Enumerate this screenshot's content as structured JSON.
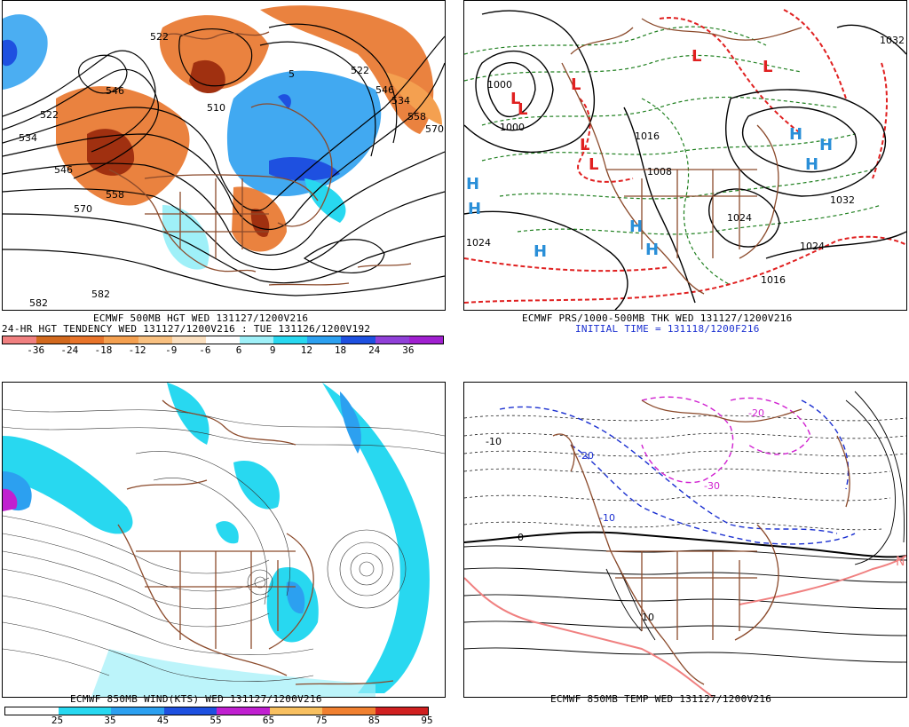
{
  "panels": {
    "tl": {
      "caption1": "ECMWF 500MB HGT WED 131127/1200V216",
      "caption2": "24-HR HGT TENDENCY WED 131127/1200V216 : TUE 131126/1200V192",
      "contour_labels": [
        "522",
        "522",
        "546",
        "510",
        "546",
        "558",
        "570",
        "534",
        "522",
        "5",
        "546",
        "534",
        "558",
        "570",
        "582",
        "582",
        "582",
        "522",
        "534"
      ],
      "legend_values": [
        "-36",
        "-24",
        "-18",
        "-12",
        "-9",
        "-6",
        "6",
        "9",
        "12",
        "18",
        "24",
        "36"
      ],
      "legend_colors": [
        "#f08080",
        "#d2691e",
        "#e8742a",
        "#f4a050",
        "#f8c080",
        "#fbe0c0",
        "#ffffff",
        "#9ff0f8",
        "#28d8f0",
        "#2ca0f0",
        "#1e50e0",
        "#9040d8",
        "#a020d0"
      ]
    },
    "tr": {
      "caption1": "ECMWF PRS/1000-500MB THK WED 131127/1200V216",
      "caption2": "INITIAL TIME = 131118/1200F216",
      "pressure_labels": [
        "1000",
        "1024",
        "1024",
        "1032",
        "1032",
        "1024",
        "1016",
        "1016",
        "1008",
        "1000"
      ],
      "high_marker": "H",
      "low_marker": "L"
    },
    "bl": {
      "caption1": "ECMWF 850MB WIND(KTS) WED 131127/1200V216",
      "legend_values": [
        "25",
        "35",
        "45",
        "55",
        "65",
        "75",
        "85",
        "95"
      ],
      "legend_colors": [
        "#ffffff",
        "#28d8f0",
        "#2ca0f0",
        "#1e50e0",
        "#c020d0",
        "#f8c060",
        "#f08030",
        "#d02020"
      ]
    },
    "br": {
      "caption1": "ECMWF 850MB TEMP WED 131127/1200V216",
      "contour_labels": [
        "-10",
        "-20",
        "-30",
        "-10",
        "-20",
        "0",
        "10",
        "N"
      ]
    }
  },
  "colors": {
    "map_border": "#8b4a2b",
    "contour": "#000000",
    "thickness_warm": "#e02020",
    "thickness_cold": "#208020",
    "high_blue": "#2a8fd8",
    "low_red": "#e02020",
    "temp_cold": "#1a2fd0",
    "temp_very_cold": "#d020d0",
    "temp_warm": "#f08080"
  }
}
